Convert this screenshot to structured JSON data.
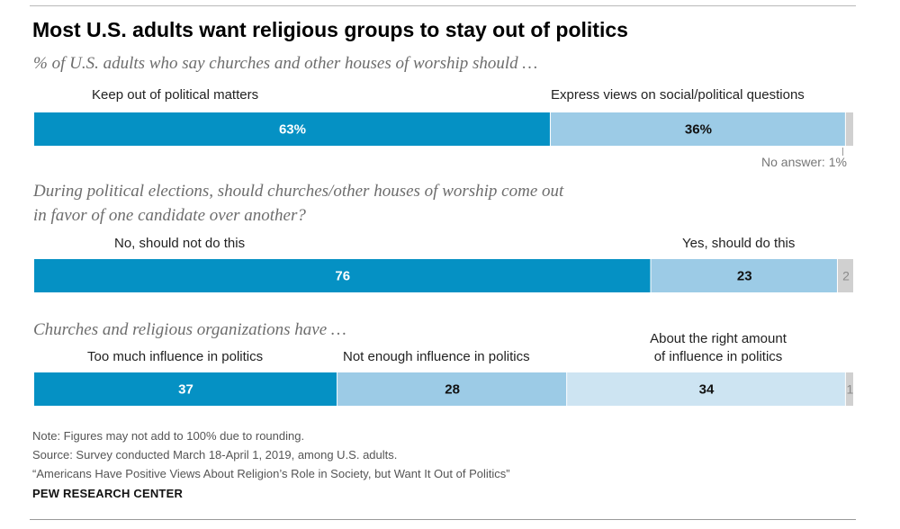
{
  "title": "Most U.S. adults want religious groups to stay out of politics",
  "colors": {
    "dark": "#0591c4",
    "medium": "#9ccbe6",
    "light": "#cde4f2",
    "gray": "#d0d0d0",
    "label_light": "#ffffff",
    "label_dark": "#111111",
    "label_gray": "#8a8a8a"
  },
  "chart_data": [
    {
      "type": "bar",
      "orientation": "horizontal-stacked",
      "subtitle": "% of U.S. adults who say churches and other houses of worship should …",
      "categories": [
        "Keep out of political matters",
        "Express views on social/political questions",
        "No answer"
      ],
      "values": [
        63,
        36,
        1
      ],
      "value_labels": [
        "63%",
        "36%",
        ""
      ],
      "annotation": "No answer: 1%"
    },
    {
      "type": "bar",
      "orientation": "horizontal-stacked",
      "subtitle": "During political elections, should churches/other houses of worship come out in favor of one candidate over another?",
      "categories": [
        "No, should not do this",
        "Yes, should do this",
        ""
      ],
      "values": [
        76,
        23,
        2
      ],
      "value_labels": [
        "76",
        "23",
        "2"
      ]
    },
    {
      "type": "bar",
      "orientation": "horizontal-stacked",
      "subtitle": "Churches and religious organizations have …",
      "categories": [
        "Too much influence in politics",
        "Not enough influence in politics",
        "About the right amount of influence in politics",
        ""
      ],
      "values": [
        37,
        28,
        34,
        1
      ],
      "value_labels": [
        "37",
        "28",
        "34",
        "1"
      ]
    }
  ],
  "questions": {
    "q2_line1": "During political elections, should churches/other houses of worship come out",
    "q2_line2": "in favor of one candidate over another?"
  },
  "category_labels": {
    "c3_about_line1": "About the right amount",
    "c3_about_line2": "of influence in politics"
  },
  "notes": {
    "note": "Note: Figures may not add to 100% due to rounding.",
    "source": "Source: Survey conducted March 18-April 1, 2019, among U.S. adults.",
    "report": "“Americans Have Positive Views About Religion’s Role in Society, but Want It Out of Politics”",
    "org": "PEW RESEARCH CENTER"
  }
}
